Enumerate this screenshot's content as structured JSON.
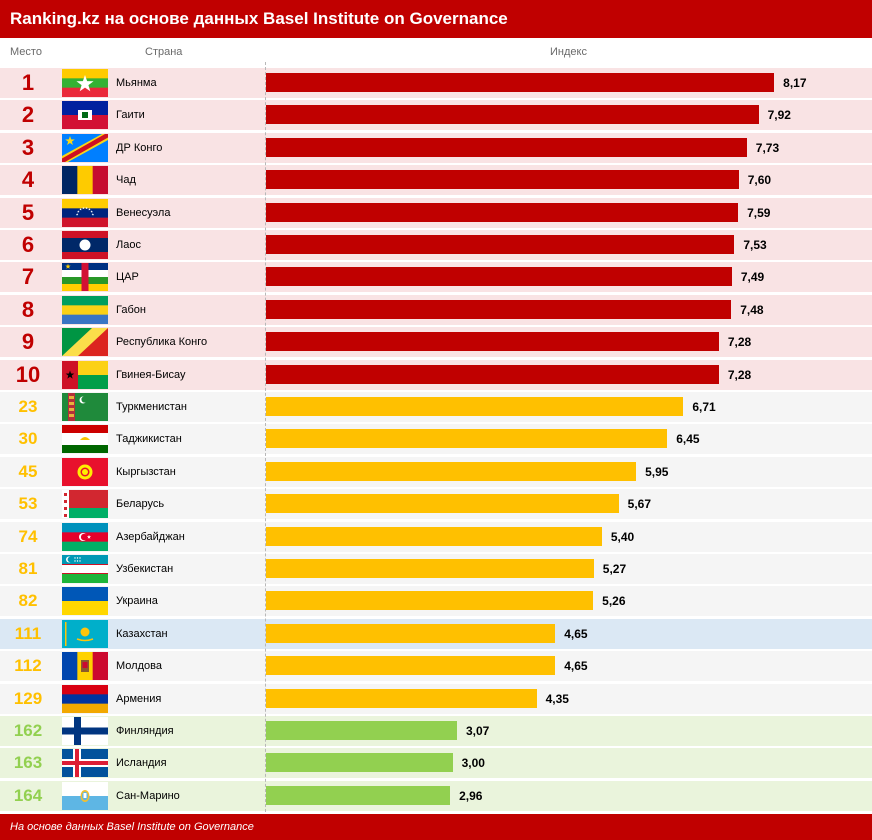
{
  "header": {
    "title": "Ranking.kz на основе данных Basel Institute on Governance"
  },
  "columns": {
    "rank": "Место",
    "country": "Страна",
    "index": "Индекс"
  },
  "footer": {
    "note": "На основе данных Basel Institute on Governance"
  },
  "colors": {
    "header_bg": "#c00000",
    "top10_bar": "#c00000",
    "top10_rank": "#c00000",
    "top10_row": "#f9e3e4",
    "cis_bar": "#ffc000",
    "cis_rank": "#ffc000",
    "cis_row": "#f5f5f5",
    "kz_row": "#dbe8f4",
    "best_bar": "#92d050",
    "best_rank": "#92d050",
    "best_row": "#eaf4dc"
  },
  "chart_data": {
    "type": "bar",
    "orientation": "horizontal",
    "ylabel": "Индекс",
    "categories": [
      "Мьянма",
      "Гаити",
      "ДР Конго",
      "Чад",
      "Венесуэла",
      "Лаос",
      "ЦАР",
      "Габон",
      "Республика Конго",
      "Гвинея-Бисау",
      "Туркменистан",
      "Таджикистан",
      "Кыргызстан",
      "Беларусь",
      "Азербайджан",
      "Узбекистан",
      "Украина",
      "Казахстан",
      "Молдова",
      "Армения",
      "Финляндия",
      "Исландия",
      "Сан-Марино"
    ],
    "values": [
      8.17,
      7.92,
      7.73,
      7.6,
      7.59,
      7.53,
      7.49,
      7.48,
      7.28,
      7.28,
      6.71,
      6.45,
      5.95,
      5.67,
      5.4,
      5.27,
      5.26,
      4.65,
      4.65,
      4.35,
      3.07,
      3.0,
      2.96
    ],
    "value_labels": [
      "8,17",
      "7,92",
      "7,73",
      "7,60",
      "7,59",
      "7,53",
      "7,49",
      "7,48",
      "7,28",
      "7,28",
      "6,71",
      "6,45",
      "5,95",
      "5,67",
      "5,40",
      "5,27",
      "5,26",
      "4,65",
      "4,65",
      "4,35",
      "3,07",
      "3,00",
      "2,96"
    ],
    "ranks": [
      "1",
      "2",
      "3",
      "4",
      "5",
      "6",
      "7",
      "8",
      "9",
      "10",
      "23",
      "30",
      "45",
      "53",
      "74",
      "81",
      "82",
      "111",
      "112",
      "129",
      "162",
      "163",
      "164"
    ],
    "groups": [
      "top10",
      "top10",
      "top10",
      "top10",
      "top10",
      "top10",
      "top10",
      "top10",
      "top10",
      "top10",
      "cis",
      "cis",
      "cis",
      "cis",
      "cis",
      "cis",
      "cis",
      "cis",
      "cis",
      "cis",
      "best",
      "best",
      "best"
    ],
    "flags": [
      "flag-myanmar",
      "flag-haiti",
      "flag-dr-congo",
      "flag-chad",
      "flag-venezuela",
      "flag-laos",
      "flag-car",
      "flag-gabon",
      "flag-republic-of-congo",
      "flag-guinea-bissau",
      "flag-turkmenistan",
      "flag-tajikistan",
      "flag-kyrgyzstan",
      "flag-belarus",
      "flag-azerbaijan",
      "flag-uzbekistan",
      "flag-ukraine",
      "flag-kazakhstan",
      "flag-moldova",
      "flag-armenia",
      "flag-finland",
      "flag-iceland",
      "flag-san-marino"
    ],
    "highlight": "Казахстан",
    "xlim": [
      0,
      10
    ]
  }
}
